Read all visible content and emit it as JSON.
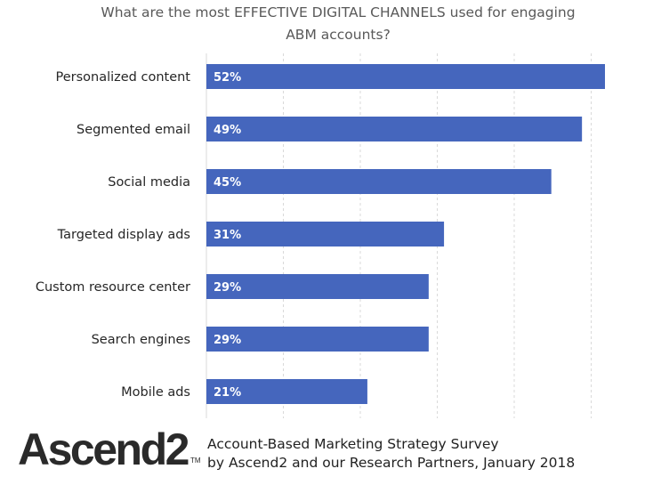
{
  "chart_data": {
    "type": "bar",
    "orientation": "horizontal",
    "title_lines": [
      "What are the most EFFECTIVE DIGITAL CHANNELS used for engaging",
      "ABM accounts?"
    ],
    "categories": [
      "Personalized content",
      "Segmented email",
      "Social media",
      "Targeted display ads",
      "Custom resource center",
      "Search engines",
      "Mobile ads"
    ],
    "values": [
      52,
      49,
      45,
      31,
      29,
      29,
      21
    ],
    "data_labels": [
      "52%",
      "49%",
      "45%",
      "31%",
      "29%",
      "29%",
      "21%"
    ],
    "xlim": [
      0,
      52
    ],
    "grid": true,
    "bar_color": "#4566bd",
    "label_color": "#ffffff"
  },
  "footer": {
    "logo_text": "Ascend2",
    "logo_mark": "TM",
    "source_line1": "Account-Based Marketing Strategy Survey",
    "source_line2": "by Ascend2 and our Research Partners, January 2018"
  }
}
